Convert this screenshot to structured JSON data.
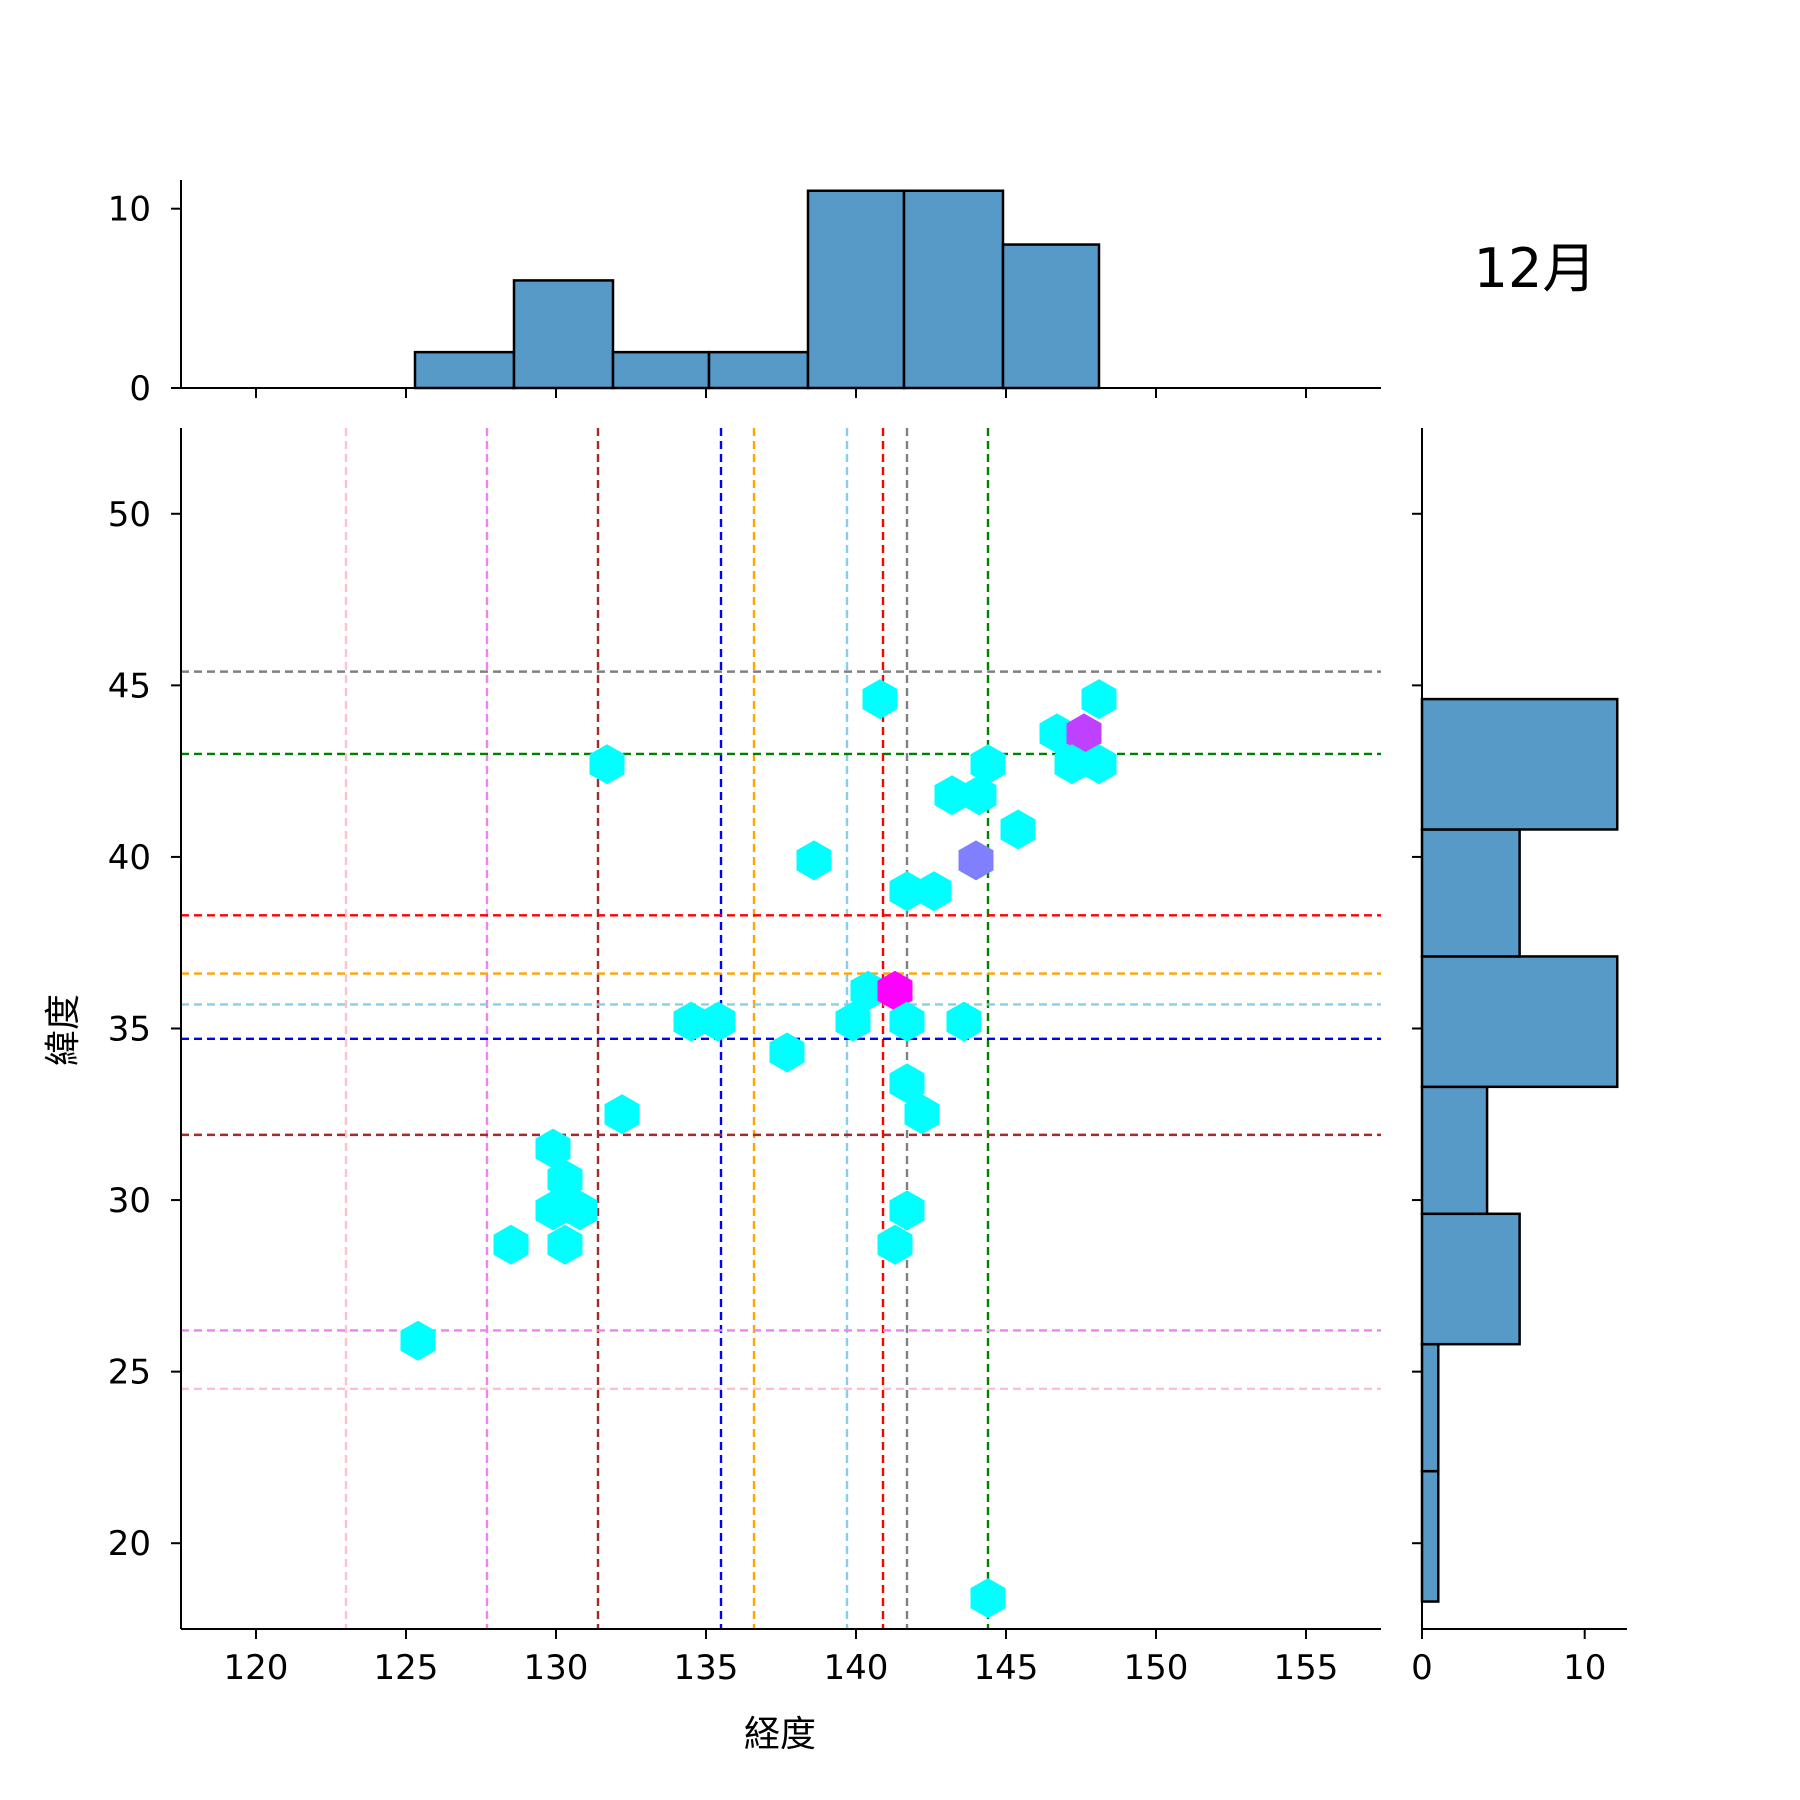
{
  "chart_data": {
    "type": "hexbin",
    "title": "12月",
    "xlabel": "経度",
    "ylabel": "緯度",
    "xlim": [
      117.5,
      157.5
    ],
    "ylim": [
      17.5,
      52.5
    ],
    "x_ticks": [
      "120",
      "125",
      "130",
      "135",
      "140",
      "145",
      "150",
      "155"
    ],
    "y_ticks": [
      "20",
      "25",
      "30",
      "35",
      "40",
      "45",
      "50"
    ],
    "hist_top_ticks": [
      "0",
      "10"
    ],
    "hist_right_ticks": [
      "0",
      "10"
    ],
    "colors": {
      "hist_fill": "#5799c7",
      "hex_low": "#00ffff",
      "hex_mid": "#8080ff",
      "hex_high": "#c040ff",
      "hex_max": "#ff00ff"
    },
    "vlines": [
      {
        "x": 123.0,
        "color": "#ffc0cb"
      },
      {
        "x": 127.7,
        "color": "#ee82ee"
      },
      {
        "x": 131.4,
        "color": "#a52a2a"
      },
      {
        "x": 135.5,
        "color": "#0000ff"
      },
      {
        "x": 136.6,
        "color": "#ffa500"
      },
      {
        "x": 139.7,
        "color": "#87ceeb"
      },
      {
        "x": 140.9,
        "color": "#ff0000"
      },
      {
        "x": 141.7,
        "color": "#808080"
      },
      {
        "x": 144.4,
        "color": "#008000"
      }
    ],
    "hlines": [
      {
        "y": 45.4,
        "color": "#808080"
      },
      {
        "y": 43.0,
        "color": "#008000"
      },
      {
        "y": 38.3,
        "color": "#ff0000"
      },
      {
        "y": 36.6,
        "color": "#ffa500"
      },
      {
        "y": 35.7,
        "color": "#87ceeb"
      },
      {
        "y": 34.7,
        "color": "#0000ff"
      },
      {
        "y": 31.9,
        "color": "#a52a2a"
      },
      {
        "y": 26.2,
        "color": "#ee82ee"
      },
      {
        "y": 24.5,
        "color": "#ffc0cb"
      }
    ],
    "hexbins": [
      {
        "x": 140.8,
        "y": 44.6,
        "count": 1
      },
      {
        "x": 148.1,
        "y": 44.6,
        "count": 1
      },
      {
        "x": 146.7,
        "y": 43.6,
        "count": 1
      },
      {
        "x": 147.6,
        "y": 43.6,
        "count": 3
      },
      {
        "x": 131.7,
        "y": 42.7,
        "count": 1
      },
      {
        "x": 144.4,
        "y": 42.7,
        "count": 1
      },
      {
        "x": 147.2,
        "y": 42.7,
        "count": 1
      },
      {
        "x": 148.1,
        "y": 42.7,
        "count": 1
      },
      {
        "x": 143.2,
        "y": 41.8,
        "count": 1
      },
      {
        "x": 144.1,
        "y": 41.8,
        "count": 1
      },
      {
        "x": 145.4,
        "y": 40.8,
        "count": 1
      },
      {
        "x": 138.6,
        "y": 39.9,
        "count": 1
      },
      {
        "x": 144.0,
        "y": 39.9,
        "count": 2
      },
      {
        "x": 141.7,
        "y": 39.0,
        "count": 1
      },
      {
        "x": 142.6,
        "y": 39.0,
        "count": 1
      },
      {
        "x": 140.4,
        "y": 36.1,
        "count": 1
      },
      {
        "x": 141.3,
        "y": 36.1,
        "count": 4
      },
      {
        "x": 134.5,
        "y": 35.2,
        "count": 1
      },
      {
        "x": 135.4,
        "y": 35.2,
        "count": 1
      },
      {
        "x": 139.9,
        "y": 35.2,
        "count": 1
      },
      {
        "x": 141.7,
        "y": 35.2,
        "count": 1
      },
      {
        "x": 143.6,
        "y": 35.2,
        "count": 1
      },
      {
        "x": 137.7,
        "y": 34.3,
        "count": 1
      },
      {
        "x": 141.7,
        "y": 33.4,
        "count": 1
      },
      {
        "x": 132.2,
        "y": 32.5,
        "count": 1
      },
      {
        "x": 142.2,
        "y": 32.5,
        "count": 1
      },
      {
        "x": 129.9,
        "y": 31.5,
        "count": 1
      },
      {
        "x": 130.3,
        "y": 30.6,
        "count": 1
      },
      {
        "x": 129.9,
        "y": 29.7,
        "count": 1
      },
      {
        "x": 130.8,
        "y": 29.7,
        "count": 1
      },
      {
        "x": 141.7,
        "y": 29.7,
        "count": 1
      },
      {
        "x": 128.5,
        "y": 28.7,
        "count": 1
      },
      {
        "x": 130.3,
        "y": 28.7,
        "count": 1
      },
      {
        "x": 141.3,
        "y": 28.7,
        "count": 1
      },
      {
        "x": 125.4,
        "y": 25.9,
        "count": 1
      },
      {
        "x": 144.4,
        "y": 18.4,
        "count": 1
      }
    ],
    "hist_longitude": {
      "bins": [
        {
          "x0": 125.3,
          "x1": 128.6,
          "count": 2
        },
        {
          "x0": 128.6,
          "x1": 131.9,
          "count": 6
        },
        {
          "x0": 131.9,
          "x1": 135.1,
          "count": 2
        },
        {
          "x0": 135.1,
          "x1": 138.4,
          "count": 2
        },
        {
          "x0": 138.4,
          "x1": 141.6,
          "count": 11
        },
        {
          "x0": 141.6,
          "x1": 144.9,
          "count": 11
        },
        {
          "x0": 144.9,
          "x1": 148.1,
          "count": 8
        }
      ],
      "ylim": [
        0,
        11.6
      ]
    },
    "hist_latitude": {
      "bins": [
        {
          "y0": 18.3,
          "y1": 22.1,
          "count": 1
        },
        {
          "y0": 22.1,
          "y1": 25.8,
          "count": 1
        },
        {
          "y0": 25.8,
          "y1": 29.6,
          "count": 6
        },
        {
          "y0": 29.6,
          "y1": 33.3,
          "count": 4
        },
        {
          "y0": 33.3,
          "y1": 37.1,
          "count": 12
        },
        {
          "y0": 37.1,
          "y1": 40.8,
          "count": 6
        },
        {
          "y0": 40.8,
          "y1": 44.6,
          "count": 12
        }
      ],
      "xlim": [
        0,
        12.6
      ]
    }
  }
}
